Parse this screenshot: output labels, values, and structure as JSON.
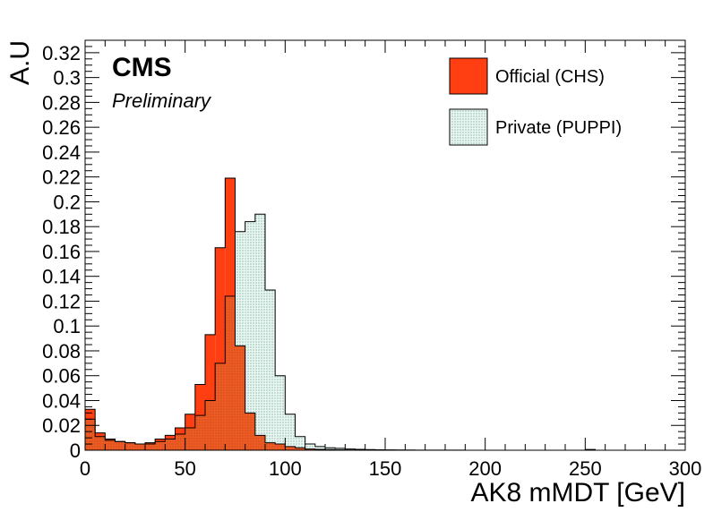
{
  "chart_data": {
    "type": "bar",
    "histogram": true,
    "xlabel": "AK8 mMDT [GeV]",
    "ylabel": "A.U",
    "xlim": [
      0,
      300
    ],
    "ylim": [
      0,
      0.33
    ],
    "bin_width": 5,
    "x_ticks": [
      "0",
      "50",
      "100",
      "150",
      "200",
      "250",
      "300"
    ],
    "y_ticks": [
      "0",
      "0.02",
      "0.04",
      "0.06",
      "0.08",
      "0.1",
      "0.12",
      "0.14",
      "0.16",
      "0.18",
      "0.2",
      "0.22",
      "0.24",
      "0.26",
      "0.28",
      "0.3",
      "0.32"
    ],
    "grid": false,
    "legend_position": "top-right",
    "annotations": {
      "experiment": "CMS",
      "status": "Preliminary"
    },
    "series": [
      {
        "name": "Official (CHS)",
        "color": "#ff3e12",
        "style": "solid-fill",
        "values": [
          0.033,
          0.014,
          0.009,
          0.007,
          0.006,
          0.005,
          0.006,
          0.009,
          0.012,
          0.018,
          0.029,
          0.053,
          0.093,
          0.163,
          0.219,
          0.084,
          0.03,
          0.012,
          0.006,
          0.005,
          0.003,
          0.002,
          0.001,
          0.0007,
          0.0005,
          0.0003,
          0.0002,
          0.0002,
          0.0001,
          0.0001,
          0.0001,
          0.0001,
          0,
          0,
          0,
          0,
          0,
          0,
          0,
          0,
          0,
          0,
          0,
          0,
          0,
          0,
          0,
          0,
          0,
          0,
          0,
          0,
          0,
          0,
          0,
          0,
          0,
          0,
          0,
          0
        ]
      },
      {
        "name": "Private (PUPPI)",
        "color": "#d8f0e8",
        "style": "hatched-fill",
        "values": [
          0.025,
          0.011,
          0.008,
          0.007,
          0.006,
          0.005,
          0.005,
          0.007,
          0.009,
          0.013,
          0.018,
          0.028,
          0.04,
          0.07,
          0.124,
          0.176,
          0.184,
          0.19,
          0.129,
          0.06,
          0.029,
          0.011,
          0.005,
          0.003,
          0.002,
          0.0015,
          0.001,
          0.0007,
          0.0005,
          0.0004,
          0.0003,
          0.0002,
          0.0002,
          0.0001,
          0.0001,
          0.0001,
          0.0001,
          0.0001,
          0,
          0,
          0,
          0,
          0,
          0,
          0,
          0,
          0,
          0,
          0,
          0,
          0.0006,
          0,
          0,
          0,
          0,
          0,
          0,
          0,
          0,
          0
        ]
      }
    ]
  }
}
